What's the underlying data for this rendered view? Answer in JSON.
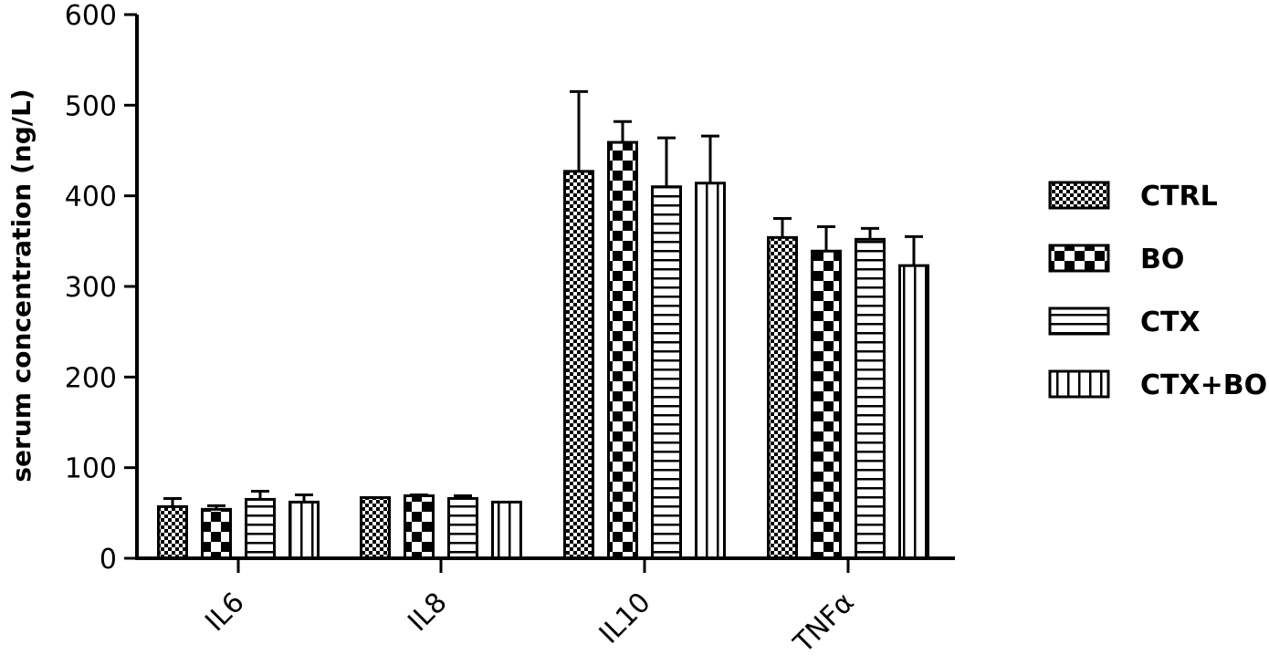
{
  "chart_data": {
    "type": "bar",
    "categories": [
      "IL6",
      "IL8",
      "IL10",
      "TNFα"
    ],
    "ylabel": "serum concentration (ng/L)",
    "xlabel": "",
    "ylim": [
      0,
      600
    ],
    "yticks": [
      "0",
      "100",
      "200",
      "300",
      "400",
      "500",
      "600"
    ],
    "grid": false,
    "legend_position": "right",
    "error_bars": "upper only",
    "series": [
      {
        "name": "CTRL",
        "pattern": "fine-check",
        "values": [
          57,
          67,
          427,
          354
        ],
        "errors": [
          9,
          0,
          88,
          21
        ]
      },
      {
        "name": "BO",
        "pattern": "checkerboard",
        "values": [
          54,
          69,
          459,
          339
        ],
        "errors": [
          4,
          1,
          23,
          27
        ]
      },
      {
        "name": "CTX",
        "pattern": "horizontal",
        "values": [
          65,
          66,
          410,
          352
        ],
        "errors": [
          9,
          3,
          54,
          12
        ]
      },
      {
        "name": "CTX+BO",
        "pattern": "vertical",
        "values": [
          62,
          62,
          414,
          323
        ],
        "errors": [
          8,
          0,
          52,
          32
        ]
      }
    ],
    "colors": {
      "stroke": "#000000",
      "fill": "#ffffff"
    }
  }
}
